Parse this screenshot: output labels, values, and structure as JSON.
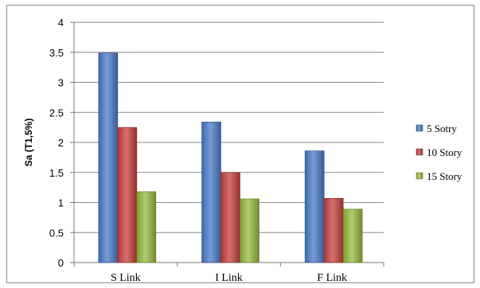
{
  "chart_data": {
    "type": "bar",
    "title": "",
    "xlabel": "",
    "ylabel": "Sa (T1,5%)",
    "ylim": [
      0,
      4
    ],
    "yticks": [
      "0",
      "0.5",
      "1",
      "1.5",
      "2",
      "2.5",
      "3",
      "3.5",
      "4"
    ],
    "categories": [
      "S Link",
      "I Link",
      "F Link"
    ],
    "series": [
      {
        "name": "5 Sotry",
        "values": [
          3.49,
          2.34,
          1.86
        ],
        "color": "#4a7cc9"
      },
      {
        "name": "10 Story",
        "values": [
          2.25,
          1.5,
          1.07
        ],
        "color": "#c9403c"
      },
      {
        "name": "15 Story",
        "values": [
          1.18,
          1.06,
          0.89
        ],
        "color": "#97bb3f"
      }
    ],
    "grid": true,
    "legend_position": "right"
  }
}
